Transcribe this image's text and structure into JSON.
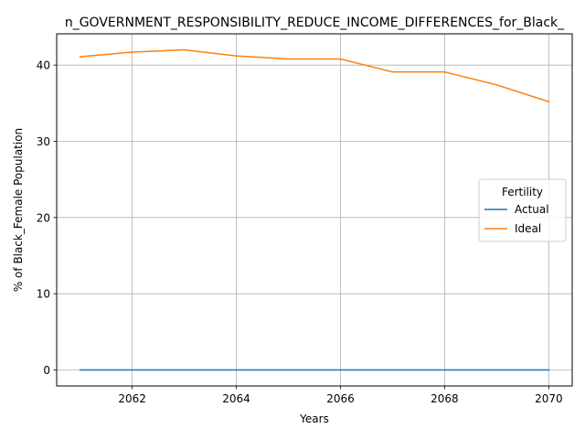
{
  "chart_data": {
    "type": "line",
    "title": "n_GOVERNMENT_RESPONSIBILITY_REDUCE_INCOME_DIFFERENCES_for_Black_",
    "xlabel": "Years",
    "ylabel": "% of Black_Female Population",
    "x": [
      2061,
      2062,
      2063,
      2064,
      2065,
      2066,
      2067,
      2068,
      2069,
      2070
    ],
    "xlim": [
      2060.55,
      2070.45
    ],
    "ylim": [
      -2.1,
      44.1
    ],
    "xticks": [
      2062,
      2064,
      2066,
      2068,
      2070
    ],
    "yticks": [
      0,
      10,
      20,
      30,
      40
    ],
    "grid": true,
    "legend": {
      "title": "Fertility",
      "placement": "center-right"
    },
    "series": [
      {
        "name": "Actual",
        "color": "#1f77b4",
        "values": [
          0,
          0,
          0,
          0,
          0,
          0,
          0,
          0,
          0,
          0
        ]
      },
      {
        "name": "Ideal",
        "color": "#ff7f0e",
        "values": [
          41.1,
          41.7,
          42.0,
          41.2,
          40.8,
          40.8,
          39.1,
          39.1,
          37.4,
          35.2
        ]
      }
    ]
  }
}
